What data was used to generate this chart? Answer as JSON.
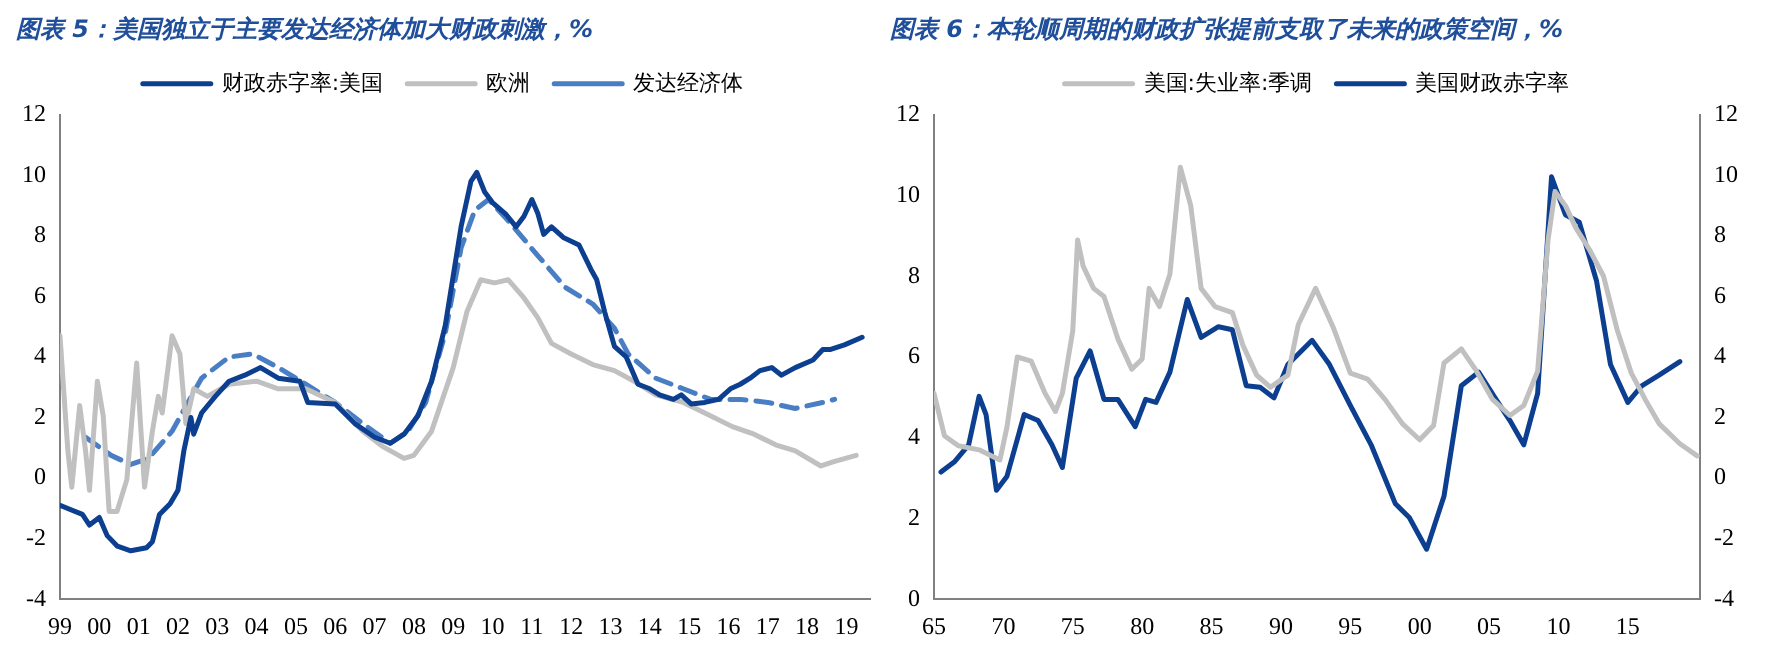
{
  "chart_data": [
    {
      "type": "line",
      "title": "图表 5：美国独立于主要发达经济体加大财政刺激，%",
      "legend": "top",
      "grid": false,
      "xlim": [
        1999,
        2019.6
      ],
      "xticks": [
        {
          "value": 1999,
          "label": "99"
        },
        {
          "value": 2000,
          "label": "00"
        },
        {
          "value": 2001,
          "label": "01"
        },
        {
          "value": 2002,
          "label": "02"
        },
        {
          "value": 2003,
          "label": "03"
        },
        {
          "value": 2004,
          "label": "04"
        },
        {
          "value": 2005,
          "label": "05"
        },
        {
          "value": 2006,
          "label": "06"
        },
        {
          "value": 2007,
          "label": "07"
        },
        {
          "value": 2008,
          "label": "08"
        },
        {
          "value": 2009,
          "label": "09"
        },
        {
          "value": 2010,
          "label": "10"
        },
        {
          "value": 2011,
          "label": "11"
        },
        {
          "value": 2012,
          "label": "12"
        },
        {
          "value": 2013,
          "label": "13"
        },
        {
          "value": 2014,
          "label": "14"
        },
        {
          "value": 2015,
          "label": "15"
        },
        {
          "value": 2016,
          "label": "16"
        },
        {
          "value": 2017,
          "label": "17"
        },
        {
          "value": 2018,
          "label": "18"
        },
        {
          "value": 2019,
          "label": "19"
        }
      ],
      "ylim": [
        -4,
        12
      ],
      "yticks": [
        -4,
        -2,
        0,
        2,
        4,
        6,
        8,
        10,
        12
      ],
      "series": [
        {
          "name": "财政赤字率:美国",
          "color": "#0d3f91",
          "line_style": "solid",
          "x": [
            1999.0,
            1999.57,
            1999.75,
            2000.0,
            2000.2,
            2000.46,
            2000.8,
            2001.2,
            2001.35,
            2001.53,
            2001.8,
            2002.0,
            2002.15,
            2002.33,
            2002.4,
            2002.6,
            2002.95,
            2003.3,
            2003.7,
            2004.1,
            2004.55,
            2005.1,
            2005.3,
            2006.0,
            2006.5,
            2007.0,
            2007.4,
            2007.75,
            2008.1,
            2008.45,
            2008.8,
            2009.2,
            2009.45,
            2009.6,
            2009.8,
            2010.0,
            2010.35,
            2010.6,
            2010.8,
            2011.0,
            2011.15,
            2011.3,
            2011.5,
            2011.8,
            2012.2,
            2012.5,
            2012.65,
            2012.85,
            2013.1,
            2013.4,
            2013.7,
            2014.0,
            2014.25,
            2014.6,
            2014.8,
            2015.05,
            2015.4,
            2015.75,
            2016.05,
            2016.3,
            2016.55,
            2016.8,
            2017.1,
            2017.35,
            2017.7,
            2018.15,
            2018.4,
            2018.6,
            2018.95,
            2019.4
          ],
          "values": [
            -0.9,
            -1.2,
            -1.55,
            -1.3,
            -1.9,
            -2.25,
            -2.4,
            -2.3,
            -2.1,
            -1.2,
            -0.85,
            -0.4,
            0.9,
            2.0,
            1.45,
            2.15,
            2.7,
            3.2,
            3.4,
            3.65,
            3.3,
            3.2,
            2.5,
            2.45,
            1.8,
            1.35,
            1.15,
            1.45,
            2.05,
            3.2,
            5.05,
            8.3,
            9.8,
            10.1,
            9.45,
            9.1,
            8.7,
            8.3,
            8.65,
            9.2,
            8.75,
            8.05,
            8.3,
            7.95,
            7.7,
            6.9,
            6.55,
            5.5,
            4.35,
            4.0,
            3.1,
            2.95,
            2.75,
            2.6,
            2.75,
            2.45,
            2.5,
            2.6,
            2.95,
            3.1,
            3.3,
            3.55,
            3.65,
            3.4,
            3.65,
            3.9,
            4.25,
            4.25,
            4.4,
            4.65
          ]
        },
        {
          "name": "欧洲",
          "color": "#c0c0c0",
          "line_style": "solid",
          "x": [
            1999.0,
            1999.2,
            1999.3,
            1999.5,
            1999.65,
            1999.75,
            1999.95,
            2000.1,
            2000.25,
            2000.45,
            2000.7,
            2000.95,
            2001.15,
            2001.35,
            2001.5,
            2001.6,
            2001.85,
            2002.05,
            2002.2,
            2002.4,
            2002.75,
            2003.3,
            2004.0,
            2004.55,
            2005.25,
            2006.0,
            2006.7,
            2007.2,
            2007.75,
            2008.0,
            2008.45,
            2009.0,
            2009.35,
            2009.7,
            2010.05,
            2010.4,
            2010.8,
            2011.15,
            2011.5,
            2012.0,
            2012.55,
            2013.1,
            2013.6,
            2014.15,
            2014.85,
            2015.4,
            2016.1,
            2016.65,
            2017.2,
            2017.7,
            2018.35,
            2018.7,
            2019.25
          ],
          "values": [
            4.7,
            0.9,
            -0.3,
            2.4,
            0.9,
            -0.4,
            3.2,
            2.05,
            -1.1,
            -1.1,
            -0.05,
            3.8,
            -0.3,
            1.55,
            2.7,
            2.15,
            4.7,
            4.1,
            1.8,
            2.95,
            2.7,
            3.1,
            3.2,
            2.95,
            2.95,
            2.5,
            1.55,
            1.05,
            0.65,
            0.75,
            1.55,
            3.65,
            5.5,
            6.55,
            6.45,
            6.55,
            5.95,
            5.3,
            4.45,
            4.1,
            3.75,
            3.55,
            3.2,
            2.75,
            2.5,
            2.15,
            1.7,
            1.45,
            1.1,
            0.9,
            0.4,
            0.55,
            0.75
          ]
        },
        {
          "name": "发达经济体",
          "color": "#4a7ec4",
          "line_style": "dashed",
          "x": [
            1999.65,
            2000.3,
            2000.8,
            2001.25,
            2001.85,
            2002.6,
            2003.3,
            2003.9,
            2004.55,
            2005.25,
            2006.0,
            2006.7,
            2007.4,
            2007.85,
            2008.3,
            2008.8,
            2009.2,
            2009.55,
            2009.9,
            2010.4,
            2011.15,
            2011.85,
            2012.55,
            2013.1,
            2013.45,
            2014.15,
            2014.85,
            2015.55,
            2016.3,
            2017.0,
            2017.7,
            2018.4,
            2018.7
          ],
          "values": [
            1.35,
            0.75,
            0.45,
            0.65,
            1.55,
            3.3,
            4.0,
            4.1,
            3.65,
            3.1,
            2.5,
            1.8,
            1.15,
            1.55,
            2.5,
            4.8,
            7.6,
            8.85,
            9.2,
            8.5,
            7.35,
            6.3,
            5.75,
            4.95,
            4.1,
            3.3,
            2.95,
            2.6,
            2.6,
            2.5,
            2.3,
            2.5,
            2.6
          ]
        }
      ]
    },
    {
      "type": "line",
      "title": "图表 6：本轮顺周期的财政扩张提前支取了未来的政策空间，%",
      "legend": "top",
      "grid": false,
      "xlim": [
        1965,
        2020.2
      ],
      "xticks": [
        {
          "value": 1965,
          "label": "65"
        },
        {
          "value": 1970,
          "label": "70"
        },
        {
          "value": 1975,
          "label": "75"
        },
        {
          "value": 1980,
          "label": "80"
        },
        {
          "value": 1985,
          "label": "85"
        },
        {
          "value": 1990,
          "label": "90"
        },
        {
          "value": 1995,
          "label": "95"
        },
        {
          "value": 2000,
          "label": "00"
        },
        {
          "value": 2005,
          "label": "05"
        },
        {
          "value": 2010,
          "label": "10"
        },
        {
          "value": 2015,
          "label": "15"
        }
      ],
      "ylim": [
        0,
        12
      ],
      "yticks": [
        0,
        2,
        4,
        6,
        8,
        10,
        12
      ],
      "y2lim": [
        -4,
        12
      ],
      "y2ticks": [
        -4,
        -2,
        0,
        2,
        4,
        6,
        8,
        10,
        12
      ],
      "series": [
        {
          "name": "美国:失业率:季调",
          "color": "#c0c0c0",
          "line_style": "solid",
          "x": [
            1965.0,
            1965.75,
            1966.75,
            1968.25,
            1969.75,
            1970.25,
            1971,
            1972,
            1973,
            1973.75,
            1974.25,
            1975,
            1975.35,
            1975.75,
            1976.5,
            1977.25,
            1978.25,
            1979.25,
            1980,
            1980.5,
            1981.25,
            1982,
            1982.75,
            1983.5,
            1984.25,
            1985.25,
            1986.5,
            1987.25,
            1988.25,
            1989.25,
            1990.5,
            1991.25,
            1992.5,
            1993.75,
            1995,
            1996.25,
            1997.5,
            1998.75,
            2000,
            2001,
            2001.75,
            2003,
            2004,
            2005.25,
            2006.5,
            2007.5,
            2008.5,
            2009.25,
            2009.75,
            2010.5,
            2011.25,
            2012.25,
            2013.25,
            2014.25,
            2015.25,
            2016.25,
            2017.25,
            2018.75,
            2020
          ],
          "values": [
            5.1,
            4.05,
            3.8,
            3.7,
            3.45,
            4.25,
            6.0,
            5.9,
            5.1,
            4.65,
            5.1,
            6.65,
            8.9,
            8.25,
            7.7,
            7.5,
            6.45,
            5.7,
            5.95,
            7.7,
            7.25,
            8.05,
            10.7,
            9.75,
            7.7,
            7.25,
            7.1,
            6.3,
            5.55,
            5.25,
            5.55,
            6.8,
            7.7,
            6.75,
            5.6,
            5.45,
            4.95,
            4.35,
            3.95,
            4.3,
            5.85,
            6.2,
            5.7,
            4.95,
            4.55,
            4.8,
            5.65,
            8.9,
            10.1,
            9.75,
            9.2,
            8.65,
            8.0,
            6.65,
            5.6,
            4.95,
            4.35,
            3.85,
            3.55
          ]
        },
        {
          "name": "美国财政赤字率",
          "color": "#0d3f91",
          "line_style": "solid",
          "axis": "y2",
          "x": [
            1965.5,
            1966.5,
            1967.5,
            1968.25,
            1968.75,
            1969.5,
            1970.25,
            1971.5,
            1972.5,
            1973.5,
            1974.25,
            1975.25,
            1976.25,
            1977.25,
            1978.25,
            1979.5,
            1980.25,
            1981,
            1982,
            1983.25,
            1984.25,
            1985.5,
            1986.5,
            1987.5,
            1988.5,
            1989.5,
            1990.5,
            1992.25,
            1993.5,
            1995,
            1996.5,
            1998.25,
            1999.25,
            2000.5,
            2001.75,
            2003,
            2004.25,
            2005.5,
            2006.5,
            2007.5,
            2008.5,
            2009.5,
            2010.5,
            2011.5,
            2012.75,
            2013.75,
            2015,
            2016,
            2017.25,
            2018.75
          ],
          "values": [
            0.2,
            0.55,
            1.1,
            2.7,
            2.1,
            -0.4,
            0.05,
            2.1,
            1.9,
            1.1,
            0.35,
            3.3,
            4.2,
            2.6,
            2.6,
            1.7,
            2.6,
            2.5,
            3.5,
            5.9,
            4.65,
            5.0,
            4.9,
            3.05,
            3.0,
            2.65,
            3.75,
            4.55,
            3.75,
            2.4,
            1.1,
            -0.85,
            -1.3,
            -2.35,
            -0.6,
            3.05,
            3.5,
            2.6,
            1.9,
            1.1,
            2.8,
            9.95,
            8.7,
            8.45,
            6.5,
            3.75,
            2.5,
            3.05,
            3.4,
            3.85
          ]
        }
      ]
    }
  ]
}
